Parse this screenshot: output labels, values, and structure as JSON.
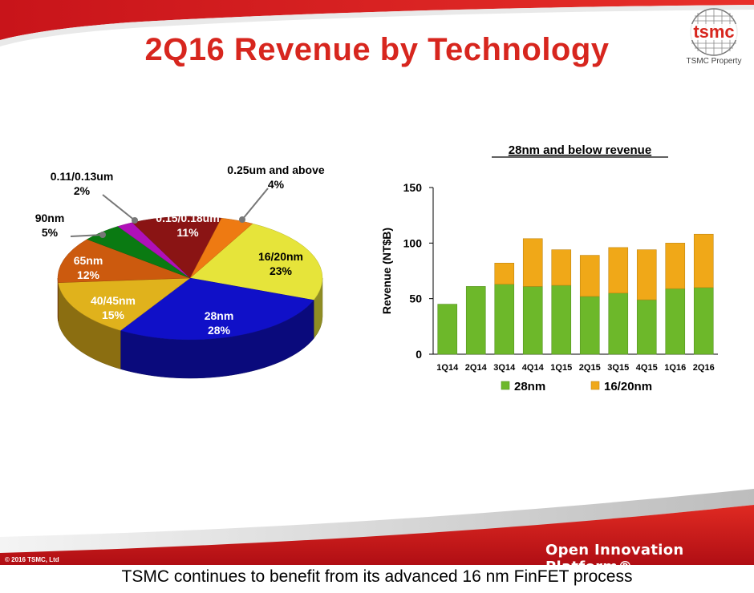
{
  "slide": {
    "title": "2Q16 Revenue by Technology",
    "logo_text": "tsmc",
    "logo_caption": "TSMC Property",
    "copyright": "© 2016 TSMC, Ltd",
    "platform_text": "Open Innovation Platform®",
    "caption": "TSMC continues to benefit from its advanced 16 nm FinFET process"
  },
  "chart_data": [
    {
      "type": "pie",
      "slices": [
        {
          "label": "16/20nm",
          "value": 23,
          "value_label": "23%",
          "color": "#e6e43a"
        },
        {
          "label": "28nm",
          "value": 28,
          "value_label": "28%",
          "color": "#1010c8"
        },
        {
          "label": "40/45nm",
          "value": 15,
          "value_label": "15%",
          "color": "#e0b21c"
        },
        {
          "label": "65nm",
          "value": 12,
          "value_label": "12%",
          "color": "#cc5a0e"
        },
        {
          "label": "90nm",
          "value": 5,
          "value_label": "5%",
          "color": "#0a7a12"
        },
        {
          "label": "0.11/0.13um",
          "value": 2,
          "value_label": "2%",
          "color": "#b010b8"
        },
        {
          "label": "0.15/0.18um",
          "value": 11,
          "value_label": "11%",
          "color": "#8a1414"
        },
        {
          "label": "0.25um and above",
          "value": 4,
          "value_label": "4%",
          "color": "#ee7a12"
        }
      ]
    },
    {
      "type": "bar",
      "stacked": true,
      "title": "28nm and below revenue",
      "ylabel": "Revenue (NT$B)",
      "ylim": [
        0,
        150
      ],
      "yticks": [
        0,
        50,
        100,
        150
      ],
      "categories": [
        "1Q14",
        "2Q14",
        "3Q14",
        "4Q14",
        "1Q15",
        "2Q15",
        "3Q15",
        "4Q15",
        "1Q16",
        "2Q16"
      ],
      "series": [
        {
          "name": "28nm",
          "color": "#6db82a",
          "values": [
            45,
            61,
            63,
            61,
            62,
            52,
            55,
            49,
            59,
            60
          ]
        },
        {
          "name": "16/20nm",
          "color": "#f0a818",
          "values": [
            0,
            0,
            19,
            43,
            32,
            37,
            41,
            45,
            41,
            48
          ]
        }
      ],
      "legend_position": "bottom"
    }
  ]
}
